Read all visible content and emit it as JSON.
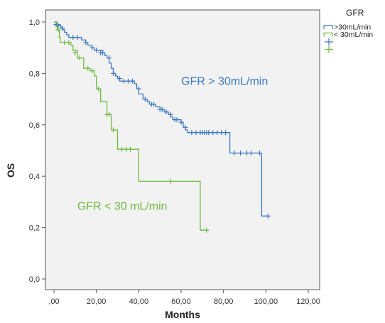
{
  "chart_data": {
    "type": "line",
    "subtype": "kaplan-meier",
    "title": "",
    "xlabel": "Months",
    "ylabel": "OS",
    "xlim": [
      0,
      120
    ],
    "ylim": [
      0,
      1
    ],
    "x_ticks": [
      0,
      20,
      40,
      60,
      80,
      100,
      120
    ],
    "x_tick_labels": [
      ",00",
      "20,00",
      "40,00",
      "60,00",
      "80,00",
      "100,00",
      "120,00"
    ],
    "y_ticks": [
      0,
      0.2,
      0.4,
      0.6,
      0.8,
      1.0
    ],
    "y_tick_labels": [
      "0,0",
      "0,2",
      "0,4",
      "0,6",
      "0,8",
      "1,0"
    ],
    "grid": false,
    "legend": {
      "title": "GFR",
      "placement": "top-right outside",
      "entries": [
        {
          "label": ">30mL/min",
          "series": 0,
          "kind": "line"
        },
        {
          "label": "< 30mL/min",
          "series": 1,
          "kind": "line"
        },
        {
          "label": "",
          "series": 0,
          "kind": "censor"
        },
        {
          "label": "",
          "series": 1,
          "kind": "censor"
        }
      ]
    },
    "annotations": [
      {
        "text": "GFR > 30mL/min",
        "series": 0,
        "x": 60,
        "y": 0.755
      },
      {
        "text": "GFR < 30 mL/min",
        "series": 1,
        "x": 11,
        "y": 0.27
      }
    ],
    "series": [
      {
        "label_ref": 0,
        "color": "#3a78c2",
        "steps": [
          [
            0,
            1.0
          ],
          [
            1.5,
            0.99
          ],
          [
            3,
            0.98
          ],
          [
            4,
            0.97
          ],
          [
            5,
            0.96
          ],
          [
            6,
            0.95
          ],
          [
            7,
            0.94
          ],
          [
            13,
            0.93
          ],
          [
            15,
            0.92
          ],
          [
            16,
            0.91
          ],
          [
            18,
            0.9
          ],
          [
            19,
            0.89
          ],
          [
            23,
            0.88
          ],
          [
            24,
            0.87
          ],
          [
            25,
            0.86
          ],
          [
            26,
            0.84
          ],
          [
            27,
            0.82
          ],
          [
            28,
            0.8
          ],
          [
            29,
            0.79
          ],
          [
            30,
            0.78
          ],
          [
            31,
            0.77
          ],
          [
            38,
            0.76
          ],
          [
            39,
            0.74
          ],
          [
            40,
            0.72
          ],
          [
            42,
            0.7
          ],
          [
            44,
            0.69
          ],
          [
            45,
            0.68
          ],
          [
            48,
            0.67
          ],
          [
            50,
            0.66
          ],
          [
            52,
            0.65
          ],
          [
            54,
            0.64
          ],
          [
            55,
            0.63
          ],
          [
            56,
            0.62
          ],
          [
            60,
            0.61
          ],
          [
            61,
            0.59
          ],
          [
            62,
            0.58
          ],
          [
            63,
            0.57
          ],
          [
            83,
            0.49
          ],
          [
            98,
            0.245
          ],
          [
            101,
            0.245
          ]
        ],
        "censored": [
          [
            1,
            0.99
          ],
          [
            2,
            0.985
          ],
          [
            4,
            0.975
          ],
          [
            9,
            0.94
          ],
          [
            11,
            0.94
          ],
          [
            15,
            0.92
          ],
          [
            18,
            0.9
          ],
          [
            20,
            0.89
          ],
          [
            22,
            0.88
          ],
          [
            23,
            0.88
          ],
          [
            26,
            0.86
          ],
          [
            28,
            0.8
          ],
          [
            31,
            0.78
          ],
          [
            33,
            0.77
          ],
          [
            35,
            0.77
          ],
          [
            37,
            0.77
          ],
          [
            40,
            0.74
          ],
          [
            43,
            0.7
          ],
          [
            46,
            0.68
          ],
          [
            47,
            0.68
          ],
          [
            50,
            0.66
          ],
          [
            51,
            0.66
          ],
          [
            53,
            0.65
          ],
          [
            55,
            0.64
          ],
          [
            57,
            0.62
          ],
          [
            58,
            0.62
          ],
          [
            60,
            0.61
          ],
          [
            62,
            0.59
          ],
          [
            65,
            0.57
          ],
          [
            67,
            0.57
          ],
          [
            69,
            0.57
          ],
          [
            70,
            0.57
          ],
          [
            71,
            0.57
          ],
          [
            72,
            0.57
          ],
          [
            73,
            0.57
          ],
          [
            75,
            0.57
          ],
          [
            77,
            0.57
          ],
          [
            79,
            0.57
          ],
          [
            81,
            0.57
          ],
          [
            85,
            0.49
          ],
          [
            88,
            0.49
          ],
          [
            91,
            0.49
          ],
          [
            93,
            0.49
          ],
          [
            97,
            0.49
          ],
          [
            101,
            0.245
          ]
        ]
      },
      {
        "label_ref": 1,
        "color": "#6dba3f",
        "steps": [
          [
            0,
            1.0
          ],
          [
            1.5,
            0.97
          ],
          [
            2.5,
            0.94
          ],
          [
            3,
            0.92
          ],
          [
            6,
            0.92
          ],
          [
            8,
            0.91
          ],
          [
            9,
            0.89
          ],
          [
            11,
            0.86
          ],
          [
            14,
            0.82
          ],
          [
            17,
            0.81
          ],
          [
            19,
            0.79
          ],
          [
            20,
            0.74
          ],
          [
            22,
            0.69
          ],
          [
            25,
            0.64
          ],
          [
            27,
            0.58
          ],
          [
            30,
            0.505
          ],
          [
            40,
            0.38
          ],
          [
            69,
            0.19
          ],
          [
            72,
            0.19
          ]
        ],
        "censored": [
          [
            2,
            0.97
          ],
          [
            5,
            0.92
          ],
          [
            7,
            0.92
          ],
          [
            10,
            0.88
          ],
          [
            12,
            0.86
          ],
          [
            16,
            0.82
          ],
          [
            18,
            0.81
          ],
          [
            21,
            0.74
          ],
          [
            25,
            0.64
          ],
          [
            26,
            0.64
          ],
          [
            28,
            0.58
          ],
          [
            32,
            0.505
          ],
          [
            34,
            0.505
          ],
          [
            36,
            0.505
          ],
          [
            55,
            0.38
          ],
          [
            72,
            0.19
          ]
        ]
      }
    ]
  }
}
